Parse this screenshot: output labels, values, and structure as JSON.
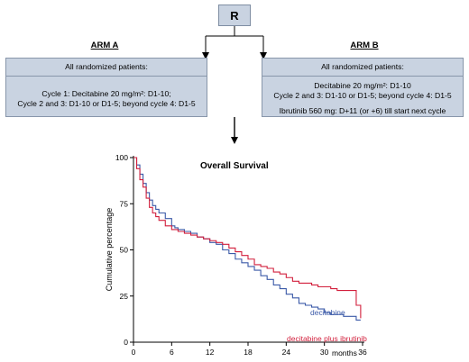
{
  "randomization": {
    "label": "R"
  },
  "arm_a": {
    "title": "ARM A",
    "header": "All randomized patients:",
    "lines": [
      "Cycle 1: Decitabine 20 mg/m²: D1-10;",
      "Cycle 2 and 3: D1-10 or D1-5; beyond cycle 4: D1-5"
    ]
  },
  "arm_b": {
    "title": "ARM B",
    "header": "All randomized patients:",
    "lines": [
      "Decitabine 20 mg/m²: D1-10",
      "Cycle 2 and 3: D1-10 or D1-5; beyond cycle 4: D1-5",
      "Ibrutinib 560 mg: D+11 (or +6) till start next cycle"
    ]
  },
  "chart_data": {
    "type": "line",
    "title": "Overall Survival",
    "xlabel": "months",
    "ylabel": "Cumulative percentage",
    "xlim": [
      0,
      36
    ],
    "ylim": [
      0,
      100
    ],
    "x_ticks": [
      "0",
      "6",
      "12",
      "18",
      "24",
      "30",
      "36"
    ],
    "y_ticks": [
      "0",
      "25",
      "50",
      "75",
      "100"
    ],
    "series": [
      {
        "name": "decitabine",
        "color": "#3b5aa8",
        "points": [
          [
            0,
            100
          ],
          [
            0.5,
            96
          ],
          [
            1,
            91
          ],
          [
            1.5,
            86
          ],
          [
            2,
            81
          ],
          [
            2.5,
            77
          ],
          [
            3,
            74
          ],
          [
            3.5,
            72
          ],
          [
            4,
            70
          ],
          [
            5,
            67
          ],
          [
            6,
            63
          ],
          [
            6.5,
            62
          ],
          [
            7,
            61
          ],
          [
            8,
            60
          ],
          [
            9,
            59
          ],
          [
            10,
            57
          ],
          [
            11,
            56
          ],
          [
            12,
            54
          ],
          [
            13,
            53
          ],
          [
            14,
            50
          ],
          [
            15,
            48
          ],
          [
            16,
            45
          ],
          [
            17,
            43
          ],
          [
            18,
            41
          ],
          [
            19,
            39
          ],
          [
            20,
            36
          ],
          [
            21,
            34
          ],
          [
            22,
            31
          ],
          [
            23,
            29
          ],
          [
            24,
            26
          ],
          [
            25,
            24
          ],
          [
            26,
            21
          ],
          [
            27,
            20
          ],
          [
            28,
            19
          ],
          [
            29,
            18
          ],
          [
            30,
            16
          ],
          [
            31,
            15
          ],
          [
            32,
            15
          ],
          [
            33,
            14
          ],
          [
            34,
            14
          ],
          [
            35,
            12
          ],
          [
            35.7,
            12
          ]
        ]
      },
      {
        "name": "decitabine plus ibrutinib",
        "color": "#d21f3c",
        "points": [
          [
            0,
            100
          ],
          [
            0.5,
            94
          ],
          [
            1,
            88
          ],
          [
            1.5,
            84
          ],
          [
            2,
            78
          ],
          [
            2.5,
            73
          ],
          [
            3,
            70
          ],
          [
            3.5,
            68
          ],
          [
            4,
            66
          ],
          [
            5,
            63
          ],
          [
            6,
            61
          ],
          [
            7,
            60
          ],
          [
            8,
            59
          ],
          [
            9,
            58
          ],
          [
            10,
            57
          ],
          [
            11,
            56
          ],
          [
            12,
            55
          ],
          [
            13,
            54
          ],
          [
            14,
            53
          ],
          [
            15,
            51
          ],
          [
            16,
            49
          ],
          [
            17,
            47
          ],
          [
            18,
            45
          ],
          [
            19,
            42
          ],
          [
            20,
            41
          ],
          [
            21,
            40
          ],
          [
            22,
            38
          ],
          [
            23,
            37
          ],
          [
            24,
            35
          ],
          [
            25,
            33
          ],
          [
            26,
            32
          ],
          [
            27,
            32
          ],
          [
            28,
            31
          ],
          [
            29,
            30
          ],
          [
            30,
            30
          ],
          [
            31,
            29
          ],
          [
            32,
            28
          ],
          [
            33,
            28
          ],
          [
            34,
            28
          ],
          [
            35,
            20
          ],
          [
            35.7,
            13
          ]
        ]
      }
    ]
  }
}
